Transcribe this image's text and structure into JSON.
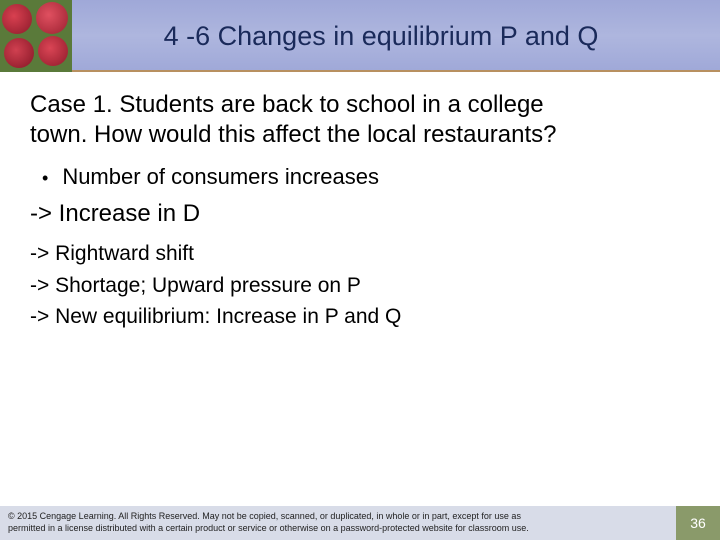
{
  "header": {
    "title": "4 -6 Changes in equilibrium P and Q"
  },
  "content": {
    "case_line1": "Case 1. Students are back to school in a college",
    "case_line2": "town. How would this affect the local restaurants?",
    "bullet1": "Number of consumers increases",
    "arrow_big": "-> Increase in D",
    "arrow1": "-> Rightward shift",
    "arrow2": "-> Shortage; Upward pressure on P",
    "arrow3": "-> New equilibrium: Increase in P and Q"
  },
  "footer": {
    "copyright_line1": "© 2015 Cengage Learning. All Rights Reserved. May not be copied, scanned, or duplicated, in whole or in part, except for use as",
    "copyright_line2": "permitted in a license distributed with a certain product or service or otherwise on a password-protected website for classroom use.",
    "page": "36"
  },
  "colors": {
    "header_bg": "#a6aed8",
    "header_text": "#1a2a5a",
    "divider": "#b89060",
    "body_text": "#000000",
    "footer_bg": "#d8dce8",
    "page_bg": "#8a9a6a"
  }
}
